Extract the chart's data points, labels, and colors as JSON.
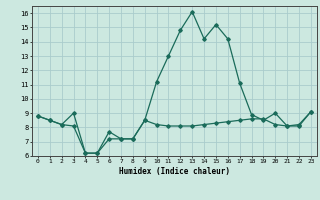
{
  "xlabel": "Humidex (Indice chaleur)",
  "ylabel": "",
  "xlim": [
    -0.5,
    23.5
  ],
  "ylim": [
    6,
    16.5
  ],
  "yticks": [
    6,
    7,
    8,
    9,
    10,
    11,
    12,
    13,
    14,
    15,
    16
  ],
  "xticks": [
    0,
    1,
    2,
    3,
    4,
    5,
    6,
    7,
    8,
    9,
    10,
    11,
    12,
    13,
    14,
    15,
    16,
    17,
    18,
    19,
    20,
    21,
    22,
    23
  ],
  "bg_color": "#cce8e0",
  "grid_color": "#aacccc",
  "line_color": "#1a6b5a",
  "line1_y": [
    8.8,
    8.5,
    8.2,
    9.0,
    6.2,
    6.2,
    7.2,
    7.2,
    7.2,
    8.5,
    11.2,
    13.0,
    14.8,
    16.1,
    14.2,
    15.2,
    14.2,
    11.1,
    8.9,
    8.5,
    9.0,
    8.1,
    8.2,
    9.1
  ],
  "line2_y": [
    8.8,
    8.5,
    8.2,
    8.1,
    6.2,
    6.2,
    7.7,
    7.2,
    7.2,
    8.5,
    8.2,
    8.1,
    8.1,
    8.1,
    8.2,
    8.3,
    8.4,
    8.5,
    8.6,
    8.6,
    8.2,
    8.1,
    8.1,
    9.1
  ]
}
